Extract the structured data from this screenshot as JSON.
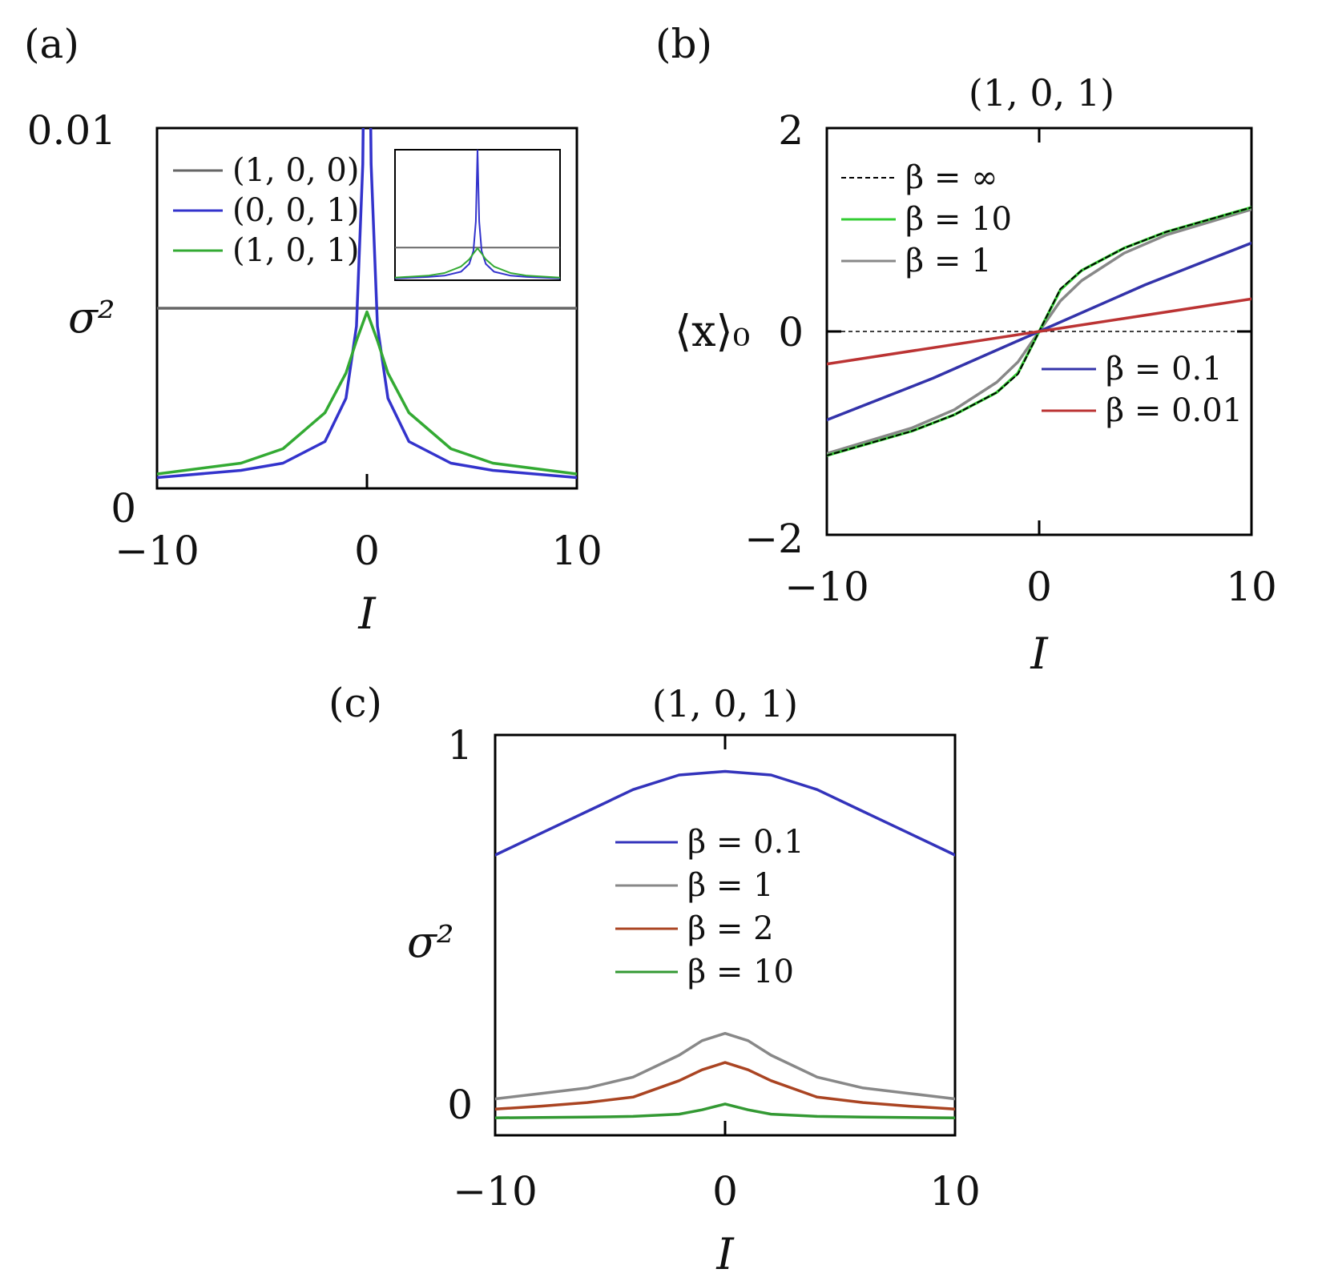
{
  "panels": {
    "a": {
      "label": "(a)",
      "title": "",
      "ylabel": "σ²",
      "xlabel": "I",
      "x_ticks": [
        "−10",
        "0",
        "10"
      ],
      "y_ticks": [
        "0",
        "0.01"
      ]
    },
    "b": {
      "label": "(b)",
      "title": "(1, 0, 1)",
      "ylabel": "⟨x⟩₀",
      "xlabel": "I",
      "x_ticks": [
        "−10",
        "0",
        "10"
      ],
      "y_ticks": [
        "−2",
        "0",
        "2"
      ]
    },
    "c": {
      "label": "(c)",
      "title": "(1, 0, 1)",
      "ylabel": "σ²",
      "xlabel": "I",
      "x_ticks": [
        "−10",
        "0",
        "10"
      ],
      "y_ticks": [
        "0",
        "1"
      ]
    }
  },
  "chart_data": [
    {
      "id": "a",
      "type": "line",
      "xlabel": "I",
      "ylabel": "σ²",
      "xlim": [
        -10,
        10
      ],
      "ylim": [
        0,
        0.01
      ],
      "legend_position": "top-left",
      "inset": "full-range view of the same three curves",
      "series": [
        {
          "name": "(1, 0, 0)",
          "color": "#666666",
          "x": [
            -10,
            0,
            10
          ],
          "y": [
            0.005,
            0.005,
            0.005
          ]
        },
        {
          "name": "(0, 0, 1)",
          "color": "#3333cc",
          "x": [
            -10,
            -6,
            -4,
            -2,
            -1,
            -0.5,
            -0.2,
            0,
            0.2,
            0.5,
            1,
            2,
            4,
            6,
            10
          ],
          "y": [
            0.0003,
            0.0005,
            0.0007,
            0.0013,
            0.0025,
            0.0045,
            0.009,
            0.02,
            0.009,
            0.0045,
            0.0025,
            0.0013,
            0.0007,
            0.0005,
            0.0003
          ]
        },
        {
          "name": "(1, 0, 1)",
          "color": "#33aa33",
          "x": [
            -10,
            -6,
            -4,
            -2,
            -1,
            -0.5,
            0,
            0.5,
            1,
            2,
            4,
            6,
            10
          ],
          "y": [
            0.0004,
            0.0007,
            0.0011,
            0.0021,
            0.0032,
            0.0041,
            0.0049,
            0.0041,
            0.0032,
            0.0021,
            0.0011,
            0.0007,
            0.0004
          ]
        }
      ]
    },
    {
      "id": "b",
      "type": "line",
      "title": "(1, 0, 1)",
      "xlabel": "I",
      "ylabel": "⟨x⟩₀",
      "xlim": [
        -10,
        10
      ],
      "ylim": [
        -2,
        2
      ],
      "legend_position": "top-left and bottom-right",
      "series": [
        {
          "name": "β = ∞",
          "color": "#000000",
          "dashed": true,
          "x": [
            -10,
            -6,
            -4,
            -2,
            -1,
            0,
            1,
            2,
            4,
            6,
            10
          ],
          "y": [
            -1.22,
            -0.98,
            -0.82,
            -0.6,
            -0.42,
            0,
            0.42,
            0.6,
            0.82,
            0.98,
            1.22
          ]
        },
        {
          "name": "β = 10",
          "color": "#33cc33",
          "x": [
            -10,
            -6,
            -4,
            -2,
            -1,
            0,
            1,
            2,
            4,
            6,
            10
          ],
          "y": [
            -1.22,
            -0.98,
            -0.82,
            -0.6,
            -0.41,
            0,
            0.41,
            0.6,
            0.82,
            0.98,
            1.22
          ]
        },
        {
          "name": "β = 1",
          "color": "#888888",
          "x": [
            -10,
            -6,
            -4,
            -2,
            -1,
            0,
            1,
            2,
            4,
            6,
            10
          ],
          "y": [
            -1.2,
            -0.95,
            -0.77,
            -0.5,
            -0.3,
            0,
            0.3,
            0.5,
            0.77,
            0.95,
            1.2
          ]
        },
        {
          "name": "β = 0.1",
          "color": "#3333aa",
          "x": [
            -10,
            -5,
            0,
            5,
            10
          ],
          "y": [
            -0.87,
            -0.46,
            0,
            0.46,
            0.87
          ]
        },
        {
          "name": "β = 0.01",
          "color": "#bb3333",
          "x": [
            -10,
            0,
            10
          ],
          "y": [
            -0.32,
            0,
            0.32
          ]
        }
      ],
      "reference_line": {
        "y": 0,
        "dashed": true
      }
    },
    {
      "id": "c",
      "type": "line",
      "title": "(1, 0, 1)",
      "xlabel": "I",
      "ylabel": "σ²",
      "xlim": [
        -10,
        10
      ],
      "ylim": [
        -0.05,
        1.05
      ],
      "legend_position": "center",
      "series": [
        {
          "name": "β = 0.1",
          "color": "#3333bb",
          "x": [
            -10,
            -8,
            -6,
            -4,
            -2,
            0,
            2,
            4,
            6,
            8,
            10
          ],
          "y": [
            0.72,
            0.78,
            0.84,
            0.9,
            0.94,
            0.95,
            0.94,
            0.9,
            0.84,
            0.78,
            0.72
          ]
        },
        {
          "name": "β = 1",
          "color": "#888888",
          "x": [
            -10,
            -8,
            -6,
            -4,
            -2,
            -1,
            0,
            1,
            2,
            4,
            6,
            8,
            10
          ],
          "y": [
            0.05,
            0.065,
            0.08,
            0.11,
            0.17,
            0.21,
            0.23,
            0.21,
            0.17,
            0.11,
            0.08,
            0.065,
            0.05
          ]
        },
        {
          "name": "β = 2",
          "color": "#aa4422",
          "x": [
            -10,
            -8,
            -6,
            -4,
            -2,
            -1,
            0,
            1,
            2,
            4,
            6,
            8,
            10
          ],
          "y": [
            0.022,
            0.03,
            0.04,
            0.055,
            0.1,
            0.13,
            0.15,
            0.13,
            0.1,
            0.055,
            0.04,
            0.03,
            0.022
          ]
        },
        {
          "name": "β = 10",
          "color": "#339933",
          "x": [
            -10,
            -6,
            -4,
            -2,
            -1,
            0,
            1,
            2,
            4,
            6,
            10
          ],
          "y": [
            -0.002,
            0.0,
            0.002,
            0.008,
            0.02,
            0.036,
            0.02,
            0.008,
            0.002,
            0.0,
            -0.002
          ]
        }
      ]
    }
  ]
}
